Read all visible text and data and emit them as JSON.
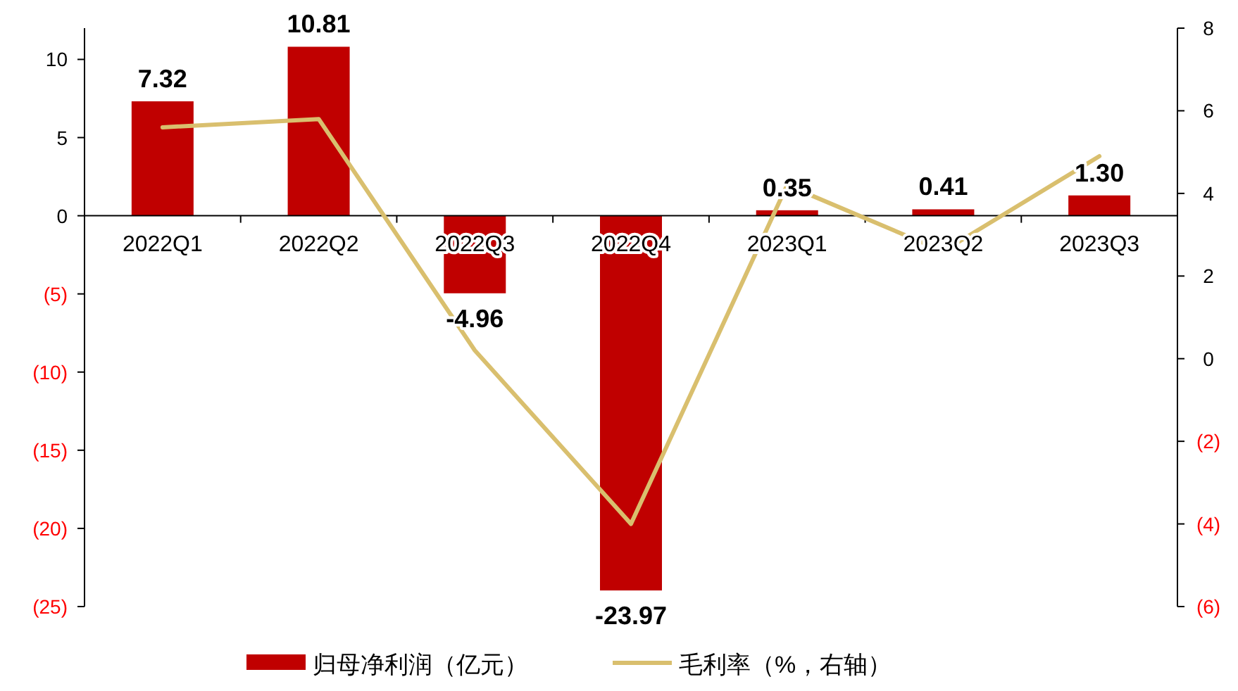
{
  "chart_data": {
    "type": "bar",
    "categories": [
      "2022Q1",
      "2022Q2",
      "2022Q3",
      "2022Q4",
      "2023Q1",
      "2023Q2",
      "2023Q3"
    ],
    "series": [
      {
        "name": "归母净利润（亿元）",
        "color": "#c00000",
        "values": [
          7.32,
          10.81,
          -4.96,
          -23.97,
          0.35,
          0.41,
          1.3
        ],
        "value_labels": [
          "7.32",
          "10.81",
          "-4.96",
          "-23.97",
          "0.35",
          "0.41",
          "1.30"
        ]
      },
      {
        "name": "毛利率（%，右轴）",
        "type": "line",
        "axis": "y2",
        "color": "#d9bf6e",
        "values": [
          5.6,
          5.8,
          0.2,
          -4.0,
          4.2,
          2.6,
          4.9
        ]
      }
    ],
    "ylim": [
      -25,
      12
    ],
    "yticks": [
      {
        "value": -25,
        "label": "(25)"
      },
      {
        "value": -20,
        "label": "(20)"
      },
      {
        "value": -15,
        "label": "(15)"
      },
      {
        "value": -10,
        "label": "(10)"
      },
      {
        "value": -5,
        "label": "(5)"
      },
      0,
      5,
      10
    ],
    "y2lim": [
      -6,
      8
    ],
    "y2ticks": [
      {
        "value": -6,
        "label": "(6)"
      },
      {
        "value": -4,
        "label": "(4)"
      },
      {
        "value": -2,
        "label": "(2)"
      },
      0,
      2,
      4,
      6,
      8
    ],
    "legend": "bottom",
    "grid": false,
    "marker": "none",
    "line_style": "solid"
  }
}
